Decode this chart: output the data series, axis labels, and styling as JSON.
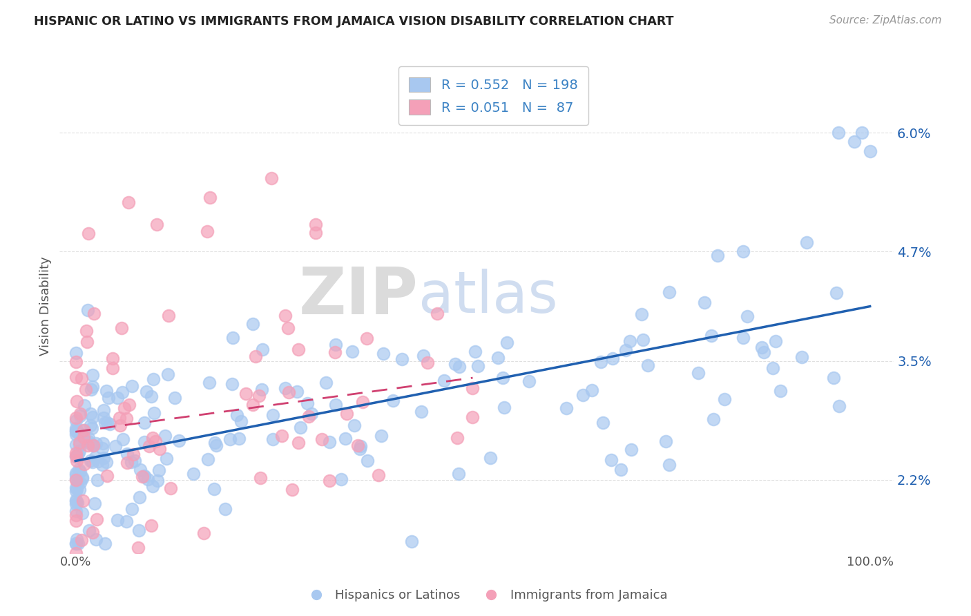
{
  "title": "HISPANIC OR LATINO VS IMMIGRANTS FROM JAMAICA VISION DISABILITY CORRELATION CHART",
  "source": "Source: ZipAtlas.com",
  "ylabel": "Vision Disability",
  "watermark_zip": "ZIP",
  "watermark_atlas": "atlas",
  "blue_R": 0.552,
  "blue_N": 198,
  "pink_R": 0.051,
  "pink_N": 87,
  "blue_color": "#A8C8F0",
  "pink_color": "#F4A0B8",
  "blue_line_color": "#2060B0",
  "pink_line_color": "#D04070",
  "grid_color": "#DDDDDD",
  "bg_color": "#FFFFFF",
  "legend_text_color": "#3B82C4",
  "title_color": "#222222",
  "ytick_labels": [
    "2.2%",
    "3.5%",
    "4.7%",
    "6.0%"
  ],
  "ytick_values": [
    0.022,
    0.035,
    0.047,
    0.06
  ],
  "ymin": 0.014,
  "ymax": 0.068,
  "xmin": -0.02,
  "xmax": 1.03
}
